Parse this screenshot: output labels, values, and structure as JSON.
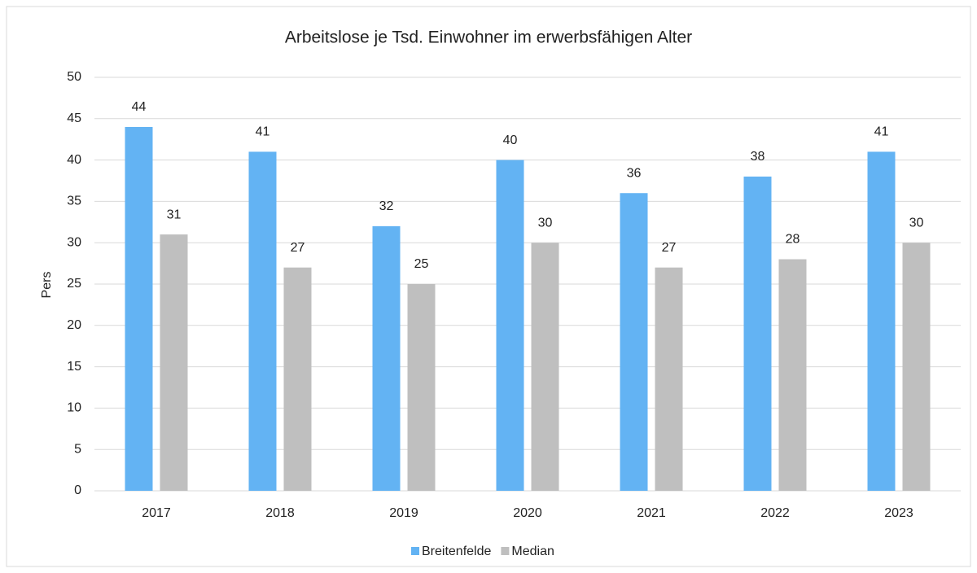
{
  "chart_data": {
    "type": "bar",
    "title": "Arbeitslose je Tsd. Einwohner im erwerbsfähigen Alter",
    "y_label": "Pers",
    "categories": [
      "2017",
      "2018",
      "2019",
      "2020",
      "2021",
      "2022",
      "2023"
    ],
    "series": [
      {
        "name": "Breitenfelde",
        "color": "#63b3f3",
        "values": [
          44,
          41,
          32,
          40,
          36,
          38,
          41
        ]
      },
      {
        "name": "Median",
        "color": "#bfbfbf",
        "values": [
          31,
          27,
          25,
          30,
          27,
          28,
          30
        ]
      }
    ],
    "ylim": [
      0,
      50
    ],
    "yticks": [
      0,
      5,
      10,
      15,
      20,
      25,
      30,
      35,
      40,
      45,
      50
    ],
    "grid": true,
    "legend": "bottom"
  }
}
